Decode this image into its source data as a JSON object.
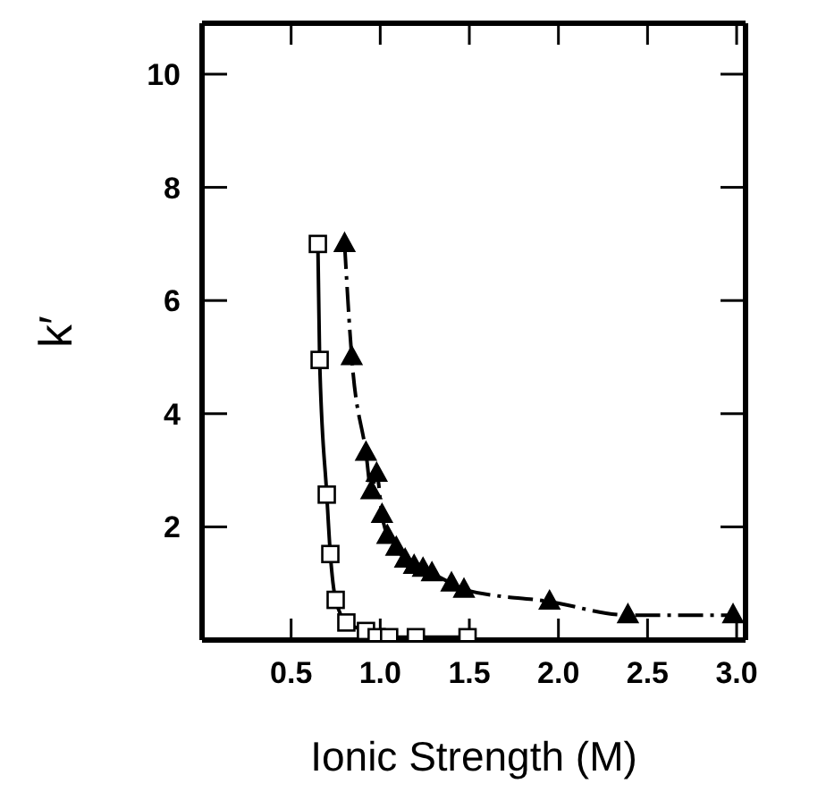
{
  "chart_data": {
    "type": "line",
    "xlabel": "Ionic Strength (M)",
    "ylabel": "k′",
    "xlim": [
      0,
      3.05
    ],
    "ylim": [
      0,
      10.9
    ],
    "xticks": [
      {
        "value": 0.5,
        "label": "0.5"
      },
      {
        "value": 1,
        "label": "1.0"
      },
      {
        "value": 1.5,
        "label": "1.5"
      },
      {
        "value": 2,
        "label": "2.0"
      },
      {
        "value": 2.5,
        "label": "2.5"
      },
      {
        "value": 3,
        "label": "3.0"
      }
    ],
    "yticks": [
      2,
      4,
      6,
      8,
      10
    ],
    "series": [
      {
        "color": "#000000",
        "marker": "square",
        "line_style": "solid",
        "x": [
          0.65,
          0.66,
          0.7,
          0.72,
          0.75,
          0.81,
          0.92,
          0.98,
          1.05,
          1.2,
          1.49
        ],
        "values": [
          7.0,
          4.95,
          2.57,
          1.52,
          0.71,
          0.31,
          0.16,
          0.05,
          0.05,
          0.05,
          0.05
        ]
      },
      {
        "color": "#000000",
        "marker": "triangle",
        "line_style": "dashed",
        "x": [
          0.8,
          0.84,
          0.92,
          0.95,
          0.98,
          1.01,
          1.04,
          1.09,
          1.14,
          1.19,
          1.24,
          1.29,
          1.4,
          1.47,
          1.95,
          2.39,
          2.98
        ],
        "values": [
          7.0,
          5.0,
          3.31,
          2.63,
          2.94,
          2.21,
          1.84,
          1.63,
          1.42,
          1.31,
          1.26,
          1.18,
          1.0,
          0.89,
          0.68,
          0.44,
          0.44
        ]
      }
    ]
  }
}
